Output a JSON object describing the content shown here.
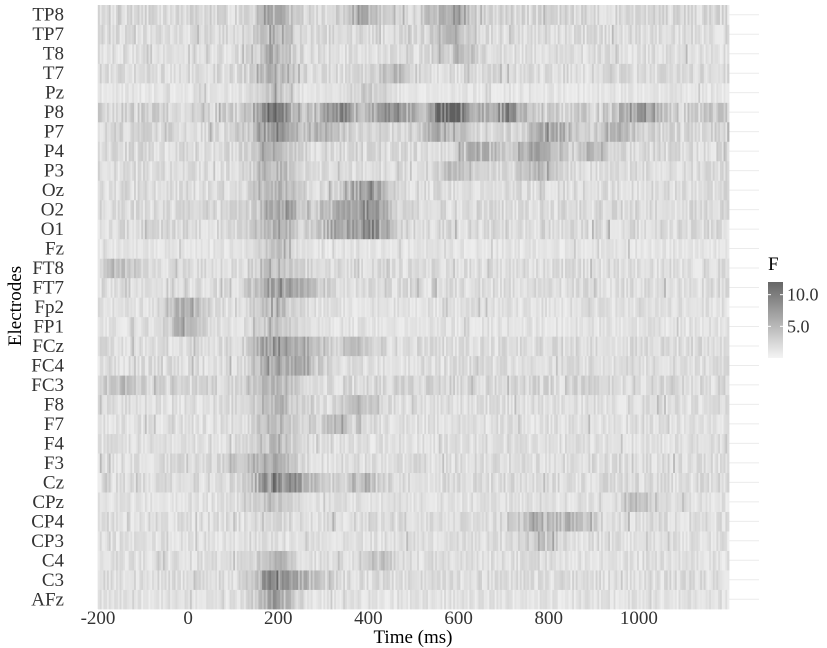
{
  "chart_data": {
    "type": "heatmap",
    "xlabel": "Time (ms)",
    "ylabel": "Electrodes",
    "xlim": [
      -200,
      1200
    ],
    "x_ticks": [
      -200,
      0,
      200,
      400,
      600,
      800,
      1000
    ],
    "y_categories": [
      "AFz",
      "C3",
      "C4",
      "CP3",
      "CP4",
      "CPz",
      "Cz",
      "F3",
      "F4",
      "F7",
      "F8",
      "FC3",
      "FC4",
      "FCz",
      "FP1",
      "Fp2",
      "FT7",
      "FT8",
      "Fz",
      "O1",
      "O2",
      "Oz",
      "P3",
      "P4",
      "P7",
      "P8",
      "Pz",
      "T7",
      "T8",
      "TP7",
      "TP8"
    ],
    "legend": {
      "title": "F",
      "labels": [
        "10.0",
        "5.0"
      ],
      "values": [
        10,
        5
      ],
      "range": [
        0,
        12
      ],
      "colors": [
        "#f4f4f4",
        "#666666"
      ],
      "position": "right"
    },
    "grid": true,
    "bin_ms": 4,
    "description_of_values": "F statistic per electrode per time bin; mostly low (0-3) with higher bands near 200 ms and 400-1000 ms in parietal electrodes",
    "profiles": {
      "AFz": {
        "base": 1.4,
        "peaks": [
          [
            190,
            5.5
          ]
        ]
      },
      "C3": {
        "base": 1.8,
        "peaks": [
          [
            190,
            7.0
          ],
          [
            250,
            3.5
          ]
        ]
      },
      "C4": {
        "base": 1.6,
        "peaks": [
          [
            190,
            4.0
          ],
          [
            420,
            2.5
          ]
        ]
      },
      "CP3": {
        "base": 1.6,
        "peaks": [
          [
            780,
            2.5
          ]
        ]
      },
      "CP4": {
        "base": 1.8,
        "peaks": [
          [
            770,
            3.5
          ],
          [
            860,
            3.0
          ]
        ]
      },
      "CPz": {
        "base": 1.5,
        "peaks": [
          [
            190,
            3.0
          ],
          [
            1000,
            2.5
          ]
        ]
      },
      "Cz": {
        "base": 1.9,
        "peaks": [
          [
            190,
            7.0
          ],
          [
            250,
            4.0
          ],
          [
            380,
            3.0
          ]
        ]
      },
      "F3": {
        "base": 1.8,
        "peaks": [
          [
            190,
            4.0
          ],
          [
            120,
            2.5
          ]
        ]
      },
      "F4": {
        "base": 1.6,
        "peaks": [
          [
            190,
            3.5
          ]
        ]
      },
      "F7": {
        "base": 1.6,
        "peaks": [
          [
            190,
            3.5
          ],
          [
            330,
            2.5
          ]
        ]
      },
      "F8": {
        "base": 1.7,
        "peaks": [
          [
            190,
            3.5
          ],
          [
            380,
            3.0
          ]
        ]
      },
      "FC3": {
        "base": 2.2,
        "peaks": [
          [
            -150,
            2.0
          ],
          [
            190,
            3.0
          ]
        ]
      },
      "FC4": {
        "base": 1.8,
        "peaks": [
          [
            190,
            5.0
          ],
          [
            250,
            3.5
          ]
        ]
      },
      "FCz": {
        "base": 1.9,
        "peaks": [
          [
            190,
            5.5
          ],
          [
            250,
            3.5
          ],
          [
            370,
            2.5
          ]
        ]
      },
      "FP1": {
        "base": 1.4,
        "peaks": [
          [
            -10,
            3.5
          ],
          [
            190,
            3.0
          ]
        ]
      },
      "Fp2": {
        "base": 1.5,
        "peaks": [
          [
            -10,
            4.5
          ],
          [
            190,
            3.5
          ]
        ]
      },
      "FT7": {
        "base": 1.8,
        "peaks": [
          [
            190,
            5.5
          ],
          [
            260,
            3.0
          ]
        ]
      },
      "FT8": {
        "base": 1.8,
        "peaks": [
          [
            190,
            3.5
          ],
          [
            -150,
            2.5
          ]
        ]
      },
      "Fz": {
        "base": 1.2,
        "peaks": [
          [
            190,
            3.0
          ]
        ]
      },
      "O1": {
        "base": 2.0,
        "peaks": [
          [
            400,
            7.0
          ],
          [
            190,
            4.0
          ],
          [
            330,
            3.5
          ]
        ]
      },
      "O2": {
        "base": 2.0,
        "peaks": [
          [
            200,
            5.0
          ],
          [
            400,
            6.0
          ],
          [
            330,
            3.5
          ]
        ]
      },
      "Oz": {
        "base": 1.9,
        "peaks": [
          [
            390,
            6.5
          ],
          [
            200,
            3.5
          ]
        ]
      },
      "P3": {
        "base": 1.8,
        "peaks": [
          [
            190,
            3.5
          ],
          [
            600,
            3.0
          ],
          [
            770,
            3.0
          ]
        ]
      },
      "P4": {
        "base": 2.0,
        "peaks": [
          [
            780,
            5.5
          ],
          [
            650,
            4.0
          ],
          [
            900,
            3.0
          ],
          [
            190,
            3.0
          ]
        ]
      },
      "P7": {
        "base": 2.2,
        "peaks": [
          [
            190,
            6.0
          ],
          [
            560,
            4.0
          ],
          [
            800,
            5.0
          ],
          [
            300,
            3.5
          ],
          [
            950,
            3.5
          ]
        ]
      },
      "P8": {
        "base": 2.8,
        "peaks": [
          [
            190,
            8.0
          ],
          [
            580,
            11.0
          ],
          [
            450,
            6.0
          ],
          [
            700,
            6.0
          ],
          [
            330,
            5.5
          ],
          [
            1000,
            5.0
          ]
        ]
      },
      "Pz": {
        "base": 1.2,
        "peaks": [
          [
            190,
            3.0
          ],
          [
            400,
            2.5
          ]
        ]
      },
      "T7": {
        "base": 1.9,
        "peaks": [
          [
            190,
            4.0
          ],
          [
            450,
            3.0
          ]
        ]
      },
      "T8": {
        "base": 1.7,
        "peaks": [
          [
            190,
            3.5
          ],
          [
            600,
            2.5
          ]
        ]
      },
      "TP7": {
        "base": 1.9,
        "peaks": [
          [
            190,
            4.0
          ],
          [
            580,
            3.5
          ]
        ]
      },
      "TP8": {
        "base": 2.1,
        "peaks": [
          [
            190,
            4.5
          ],
          [
            580,
            5.0
          ],
          [
            380,
            3.5
          ]
        ]
      }
    }
  }
}
